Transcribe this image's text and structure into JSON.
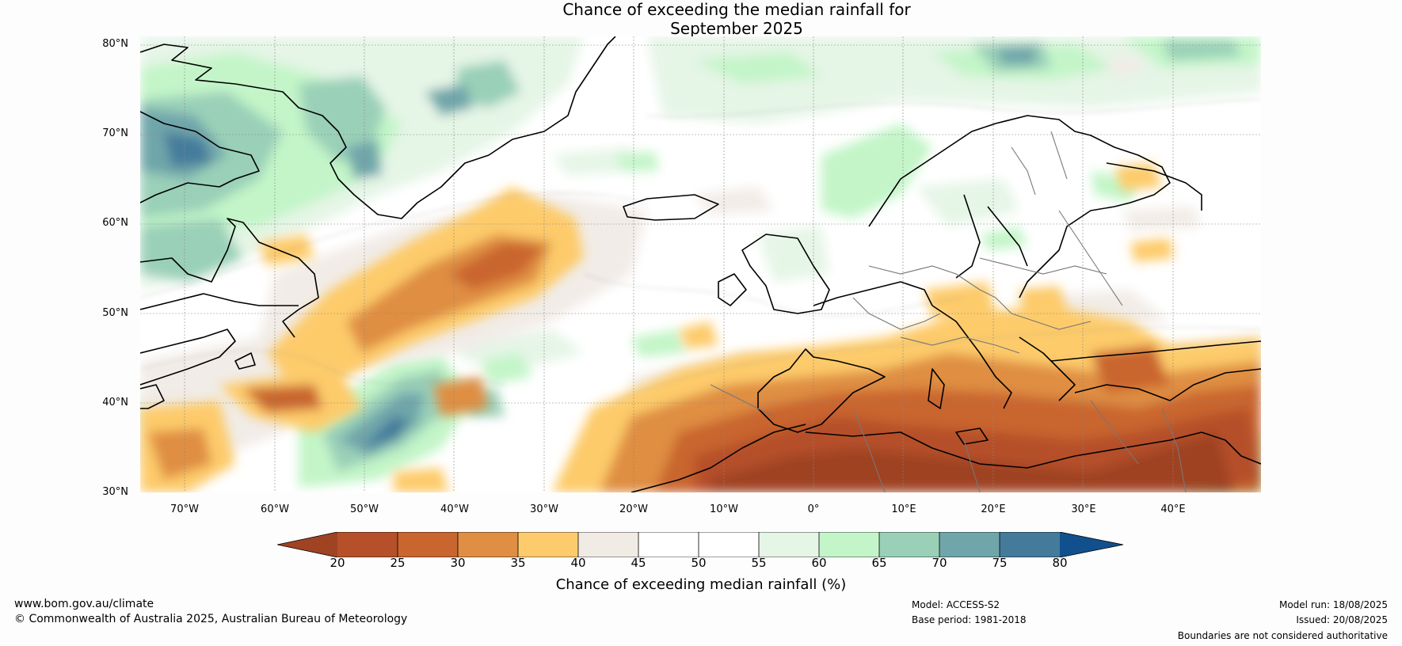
{
  "header": {
    "title_line1": "Chance of exceeding the median rainfall for",
    "title_line2": "September 2025"
  },
  "map": {
    "region": "North Atlantic and Europe",
    "latitude_labels": [
      "80°N",
      "70°N",
      "60°N",
      "50°N",
      "40°N",
      "30°N"
    ],
    "longitude_labels": [
      "70°W",
      "60°W",
      "50°W",
      "40°W",
      "30°W",
      "20°W",
      "10°W",
      "0°",
      "10°E",
      "20°E",
      "30°E",
      "40°E"
    ],
    "field_summary": {
      "drier_than_median_areas": [
        "Mediterranean",
        "North Africa",
        "Iberia",
        "Balkans",
        "Central North Atlantic",
        "Middle East"
      ],
      "wetter_than_median_areas": [
        "Greenland",
        "Scandinavia",
        "Labrador Sea",
        "Arctic"
      ]
    }
  },
  "colorbar": {
    "label": "Chance of exceeding median rainfall (%)",
    "ticks": [
      "20",
      "25",
      "30",
      "35",
      "40",
      "45",
      "50",
      "55",
      "60",
      "65",
      "70",
      "75",
      "80"
    ],
    "colors": [
      "#9f4323",
      "#b5502a",
      "#c9652f",
      "#df8e43",
      "#fdcb6b",
      "#f1ebe6",
      "#ffffff",
      "#ffffff",
      "#e5f5e6",
      "#c3f5c8",
      "#9ad0b8",
      "#70a6aa",
      "#447b9b",
      "#11508d"
    ]
  },
  "footer": {
    "website": "www.bom.gov.au/climate",
    "copyright": "© Commonwealth of Australia 2025, Australian Bureau of Meteorology",
    "model": "Model: ACCESS-S2",
    "base_period": "Base period: 1981-2018",
    "model_run": "Model run: 18/08/2025",
    "issued": "Issued: 20/08/2025",
    "disclaimer": "Boundaries are not considered authoritative"
  }
}
